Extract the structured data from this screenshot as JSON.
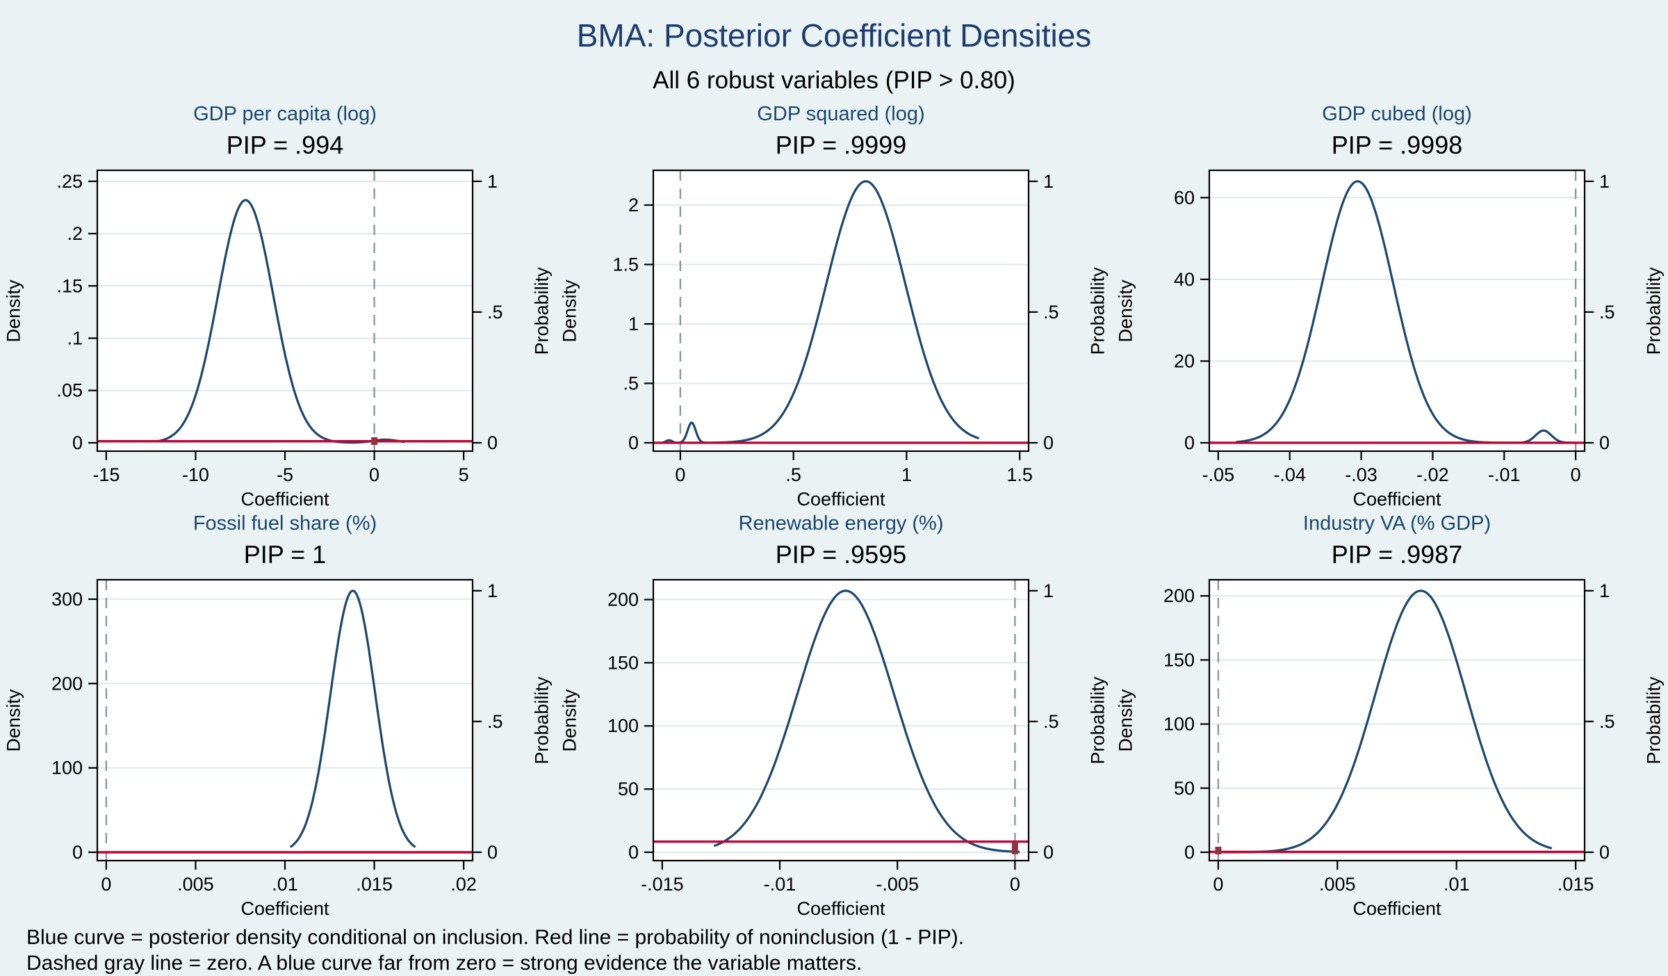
{
  "header": {
    "title": "BMA: Posterior Coefficient Densities",
    "subtitle": "All 6 robust variables (PIP > 0.80)"
  },
  "caption": {
    "line1": "Blue curve = posterior density conditional on inclusion. Red line = probability of noninclusion (1 - PIP).",
    "line2": "Dashed gray line = zero. A blue curve far from zero = strong evidence the variable matters."
  },
  "colors": {
    "background": "#eaf2f3",
    "plot_background": "#ffffff",
    "curve": "#1a476f",
    "red_line": "#c10534",
    "zero_bar": "#90353b",
    "dashed_zero": "#8f979d",
    "gridline": "#dce9ec",
    "axis": "#000000",
    "main_title": "#1c3d6e",
    "panel_title": "#1a476f"
  },
  "chart_data": {
    "type": "line",
    "layout": {
      "rows": 2,
      "cols": 3,
      "gridlines": "horizontal only, at left-axis ticks",
      "legend": "none",
      "dual_axis": "left Density, right Probability (0 to 1)"
    },
    "panels": [
      {
        "id": "gdp-per-capita-log",
        "title": "GDP per capita (log)",
        "pip_label": "PIP = .994",
        "pip": 0.994,
        "xlabel": "Coefficient",
        "ylabel_left": "Density",
        "ylabel_right": "Probability",
        "x_ticks": [
          {
            "v": -15,
            "l": "-15"
          },
          {
            "v": -10,
            "l": "-10"
          },
          {
            "v": -5,
            "l": "-5"
          },
          {
            "v": 0,
            "l": "0"
          },
          {
            "v": 5,
            "l": "5"
          }
        ],
        "y_ticks": [
          {
            "v": 0,
            "l": "0"
          },
          {
            "v": 0.05,
            "l": ".05"
          },
          {
            "v": 0.1,
            "l": ".1"
          },
          {
            "v": 0.15,
            "l": ".15"
          },
          {
            "v": 0.2,
            "l": ".2"
          },
          {
            "v": 0.25,
            "l": ".25"
          }
        ],
        "prob_ticks": [
          {
            "v": 0,
            "l": "0"
          },
          {
            "v": 0.5,
            "l": ".5"
          },
          {
            "v": 1,
            "l": "1"
          }
        ],
        "prob_one_density": 0.25,
        "curve": {
          "domain": [
            -12.2,
            1.7
          ],
          "components": [
            {
              "mean": -7.2,
              "sd": 1.55,
              "peak": 0.232
            },
            {
              "mean": 0.6,
              "sd": 0.7,
              "peak": 0.003
            }
          ]
        },
        "red_line_prob": 0.006,
        "zero_line_x": 0,
        "zero_mass_bar": true
      },
      {
        "id": "gdp-squared-log",
        "title": "GDP squared (log)",
        "pip_label": "PIP = .9999",
        "pip": 0.9999,
        "xlabel": "Coefficient",
        "ylabel_left": "Density",
        "ylabel_right": "Probability",
        "x_ticks": [
          {
            "v": 0,
            "l": "0"
          },
          {
            "v": 0.5,
            "l": ".5"
          },
          {
            "v": 1,
            "l": "1"
          },
          {
            "v": 1.5,
            "l": "1.5"
          }
        ],
        "y_ticks": [
          {
            "v": 0,
            "l": "0"
          },
          {
            "v": 0.5,
            "l": ".5"
          },
          {
            "v": 1,
            "l": "1"
          },
          {
            "v": 1.5,
            "l": "1.5"
          },
          {
            "v": 2,
            "l": "2"
          }
        ],
        "prob_ticks": [
          {
            "v": 0,
            "l": "0"
          },
          {
            "v": 0.5,
            "l": ".5"
          },
          {
            "v": 1,
            "l": "1"
          }
        ],
        "prob_one_density": 2.2,
        "curve": {
          "domain": [
            -0.08,
            1.32
          ],
          "components": [
            {
              "mean": 0.82,
              "sd": 0.175,
              "peak": 2.2
            },
            {
              "mean": 0.05,
              "sd": 0.018,
              "peak": 0.17
            },
            {
              "mean": -0.05,
              "sd": 0.013,
              "peak": 0.022
            }
          ]
        },
        "red_line_prob": 0.0001,
        "zero_line_x": 0,
        "zero_mass_bar": false
      },
      {
        "id": "gdp-cubed-log",
        "title": "GDP cubed (log)",
        "pip_label": "PIP = .9998",
        "pip": 0.9998,
        "xlabel": "Coefficient",
        "ylabel_left": "Density",
        "ylabel_right": "Probability",
        "x_ticks": [
          {
            "v": -0.05,
            "l": "-.05"
          },
          {
            "v": -0.04,
            "l": "-.04"
          },
          {
            "v": -0.03,
            "l": "-.03"
          },
          {
            "v": -0.02,
            "l": "-.02"
          },
          {
            "v": -0.01,
            "l": "-.01"
          },
          {
            "v": 0,
            "l": "0"
          }
        ],
        "y_ticks": [
          {
            "v": 0,
            "l": "0"
          },
          {
            "v": 20,
            "l": "20"
          },
          {
            "v": 40,
            "l": "40"
          },
          {
            "v": 60,
            "l": "60"
          }
        ],
        "prob_ticks": [
          {
            "v": 0,
            "l": "0"
          },
          {
            "v": 0.5,
            "l": ".5"
          },
          {
            "v": 1,
            "l": "1"
          }
        ],
        "prob_one_density": 64,
        "curve": {
          "domain": [
            -0.0475,
            -0.0002
          ],
          "components": [
            {
              "mean": -0.0305,
              "sd": 0.005,
              "peak": 64
            },
            {
              "mean": -0.0045,
              "sd": 0.0011,
              "peak": 3
            }
          ]
        },
        "red_line_prob": 0.0002,
        "zero_line_x": 0,
        "zero_mass_bar": false
      },
      {
        "id": "fossil-fuel-share",
        "title": "Fossil fuel share (%)",
        "pip_label": "PIP = 1",
        "pip": 1,
        "xlabel": "Coefficient",
        "ylabel_left": "Density",
        "ylabel_right": "Probability",
        "x_ticks": [
          {
            "v": 0,
            "l": "0"
          },
          {
            "v": 0.005,
            "l": ".005"
          },
          {
            "v": 0.01,
            "l": ".01"
          },
          {
            "v": 0.015,
            "l": ".015"
          },
          {
            "v": 0.02,
            "l": ".02"
          }
        ],
        "y_ticks": [
          {
            "v": 0,
            "l": "0"
          },
          {
            "v": 100,
            "l": "100"
          },
          {
            "v": 200,
            "l": "200"
          },
          {
            "v": 300,
            "l": "300"
          }
        ],
        "prob_ticks": [
          {
            "v": 0,
            "l": "0"
          },
          {
            "v": 0.5,
            "l": ".5"
          },
          {
            "v": 1,
            "l": "1"
          }
        ],
        "prob_one_density": 310,
        "curve": {
          "domain": [
            0.0103,
            0.0173
          ],
          "components": [
            {
              "mean": 0.0138,
              "sd": 0.00125,
              "peak": 310
            }
          ]
        },
        "red_line_prob": 0,
        "zero_line_x": 0,
        "zero_mass_bar": false
      },
      {
        "id": "renewable-energy",
        "title": "Renewable energy (%)",
        "pip_label": "PIP = .9595",
        "pip": 0.9595,
        "xlabel": "Coefficient",
        "ylabel_left": "Density",
        "ylabel_right": "Probability",
        "x_ticks": [
          {
            "v": -0.015,
            "l": "-.015"
          },
          {
            "v": -0.01,
            "l": "-.01"
          },
          {
            "v": -0.005,
            "l": "-.005"
          },
          {
            "v": 0,
            "l": "0"
          }
        ],
        "y_ticks": [
          {
            "v": 0,
            "l": "0"
          },
          {
            "v": 50,
            "l": "50"
          },
          {
            "v": 100,
            "l": "100"
          },
          {
            "v": 150,
            "l": "150"
          },
          {
            "v": 200,
            "l": "200"
          }
        ],
        "prob_ticks": [
          {
            "v": 0,
            "l": "0"
          },
          {
            "v": 0.5,
            "l": ".5"
          },
          {
            "v": 1,
            "l": "1"
          }
        ],
        "prob_one_density": 207,
        "curve": {
          "domain": [
            -0.0128,
            0.0002
          ],
          "components": [
            {
              "mean": -0.0072,
              "sd": 0.00205,
              "peak": 207
            }
          ]
        },
        "red_line_prob": 0.0405,
        "zero_line_x": 0,
        "zero_mass_bar": true
      },
      {
        "id": "industry-va",
        "title": "Industry VA (% GDP)",
        "pip_label": "PIP = .9987",
        "pip": 0.9987,
        "xlabel": "Coefficient",
        "ylabel_left": "Density",
        "ylabel_right": "Probability",
        "x_ticks": [
          {
            "v": 0,
            "l": "0"
          },
          {
            "v": 0.005,
            "l": ".005"
          },
          {
            "v": 0.01,
            "l": ".01"
          },
          {
            "v": 0.015,
            "l": ".015"
          }
        ],
        "y_ticks": [
          {
            "v": 0,
            "l": "0"
          },
          {
            "v": 50,
            "l": "50"
          },
          {
            "v": 100,
            "l": "100"
          },
          {
            "v": 150,
            "l": "150"
          },
          {
            "v": 200,
            "l": "200"
          }
        ],
        "prob_ticks": [
          {
            "v": 0,
            "l": "0"
          },
          {
            "v": 0.5,
            "l": ".5"
          },
          {
            "v": 1,
            "l": "1"
          }
        ],
        "prob_one_density": 204,
        "curve": {
          "domain": [
            0.0002,
            0.014
          ],
          "components": [
            {
              "mean": 0.0085,
              "sd": 0.0019,
              "peak": 204
            }
          ]
        },
        "red_line_prob": 0.0013,
        "zero_line_x": 0,
        "zero_mass_bar": true
      }
    ]
  }
}
